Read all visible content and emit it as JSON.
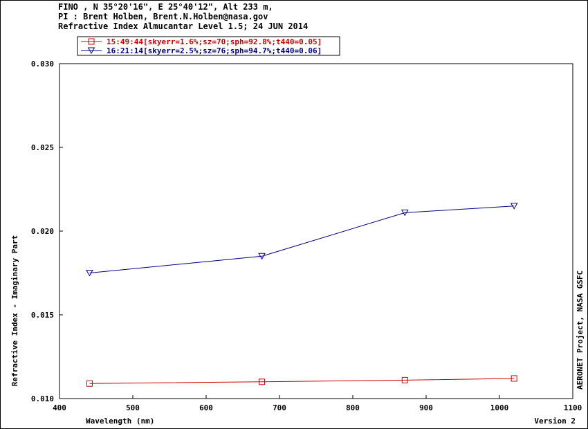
{
  "header": {
    "line1": "FINO , N 35°20'16\", E 25°40'12\", Alt 233 m,",
    "line2": "PI : Brent Holben, Brent.N.Holben@nasa.gov",
    "line3": "Refractive Index Almucantar Level 1.5; 24 JUN 2014"
  },
  "right_label": "AERONET Project, NASA GSFC",
  "version": "Version 2",
  "chart_data": {
    "type": "line",
    "xlabel": "Wavelength (nm)",
    "ylabel": "Refractive Index - Imaginary Part",
    "xlim": [
      400,
      1100
    ],
    "ylim": [
      0.01,
      0.03
    ],
    "xticks": [
      "400",
      "500",
      "600",
      "700",
      "800",
      "900",
      "1000",
      "1100"
    ],
    "yticks": [
      "0.010",
      "0.015",
      "0.020",
      "0.025",
      "0.030"
    ],
    "grid": false,
    "legend_position": "top-left",
    "series": [
      {
        "name": "15:49:44[skyerr=1.6%;sz=70;sph=92.8%;t440=0.05]",
        "color": "#cc0000",
        "marker": "square",
        "x": [
          441,
          676,
          871,
          1020
        ],
        "y": [
          0.0109,
          0.011,
          0.0111,
          0.0112
        ]
      },
      {
        "name": "16:21:14[skyerr=2.5%;sz=76;sph=94.7%;t440=0.06]",
        "color": "#000080",
        "marker": "triangle-down",
        "x": [
          441,
          676,
          871,
          1020
        ],
        "y": [
          0.0175,
          0.0185,
          0.0211,
          0.0215
        ]
      }
    ]
  }
}
